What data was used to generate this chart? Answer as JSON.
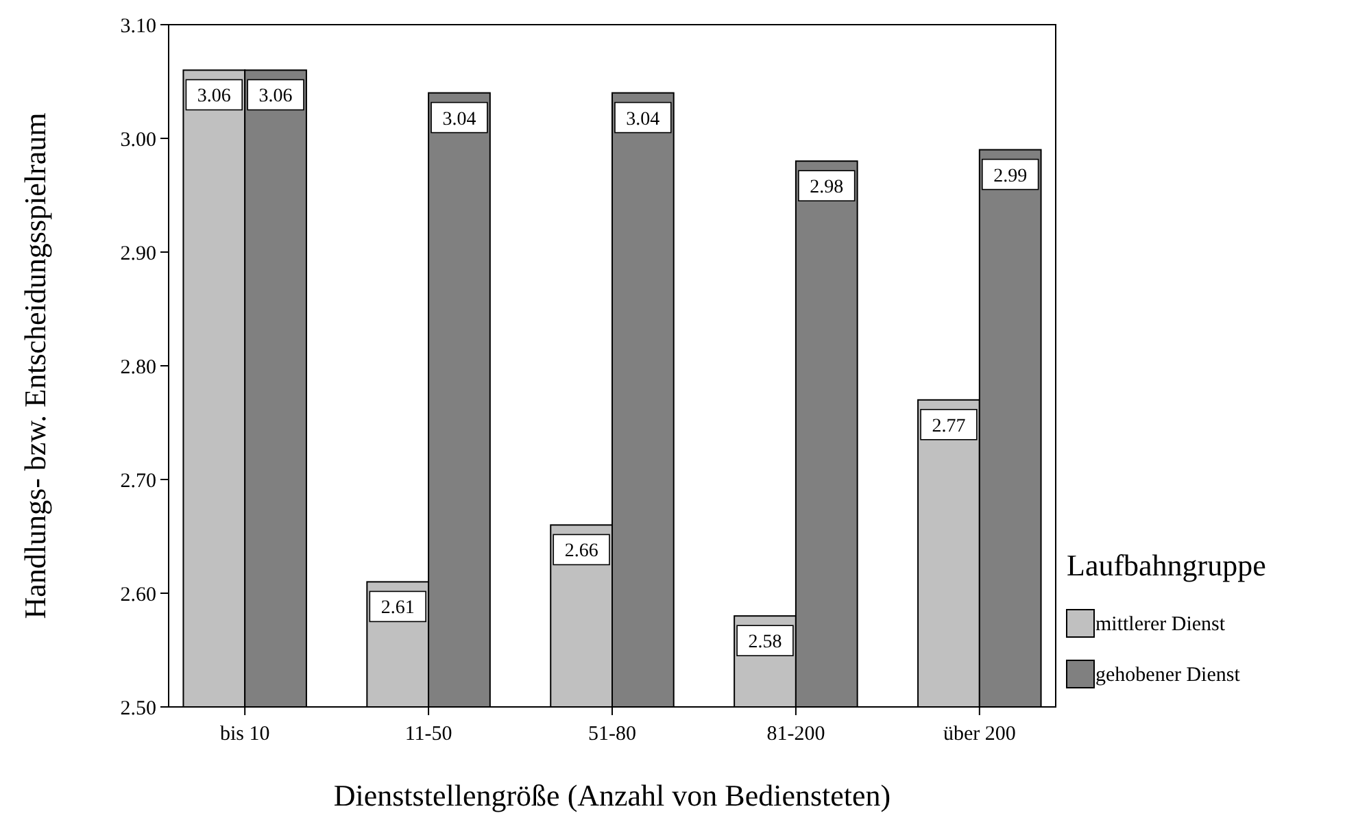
{
  "chart_data": {
    "type": "bar",
    "xlabel": "Dienststellengröße (Anzahl von Bediensteten)",
    "ylabel": "Handlungs- bzw. Entscheidungsspielraum",
    "legend_title": "Laufbahngruppe",
    "categories": [
      "bis 10",
      "11-50",
      "51-80",
      "81-200",
      "über 200"
    ],
    "series": [
      {
        "name": "mittlerer Dienst",
        "color": "#c0c0c0",
        "values": [
          3.06,
          2.61,
          2.66,
          2.58,
          2.77
        ]
      },
      {
        "name": "gehobener Dienst",
        "color": "#808080",
        "values": [
          3.06,
          3.04,
          3.04,
          2.98,
          2.99
        ]
      }
    ],
    "ylim": [
      2.5,
      3.1
    ],
    "yticks": [
      {
        "value": 2.5,
        "label": "2.50"
      },
      {
        "value": 2.6,
        "label": "2.60"
      },
      {
        "value": 2.7,
        "label": "2.70"
      },
      {
        "value": 2.8,
        "label": "2.80"
      },
      {
        "value": 2.9,
        "label": "2.90"
      },
      {
        "value": 3.0,
        "label": "3.00"
      },
      {
        "value": 3.1,
        "label": "3.10"
      }
    ],
    "data_labels": true,
    "legend": "right",
    "grid": false
  }
}
